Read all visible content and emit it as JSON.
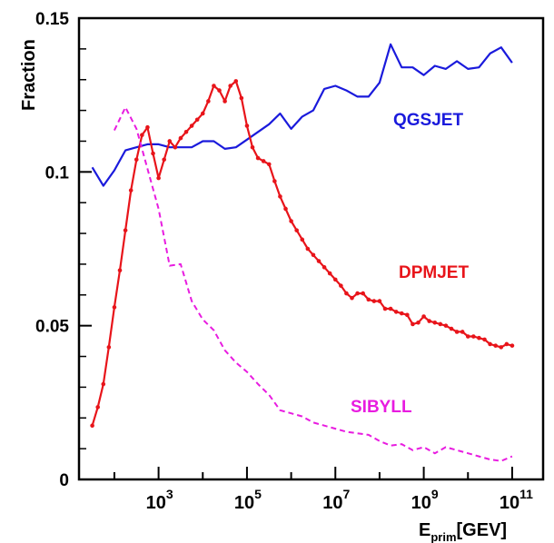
{
  "chart_data": {
    "type": "line",
    "ylabel": "Fraction",
    "xlabel_main": "E",
    "xlabel_sub": "prim",
    "xlabel_unit": "[GEV]",
    "xscale": "log10",
    "xlim_exp": [
      1.2,
      11.7
    ],
    "ylim": [
      0,
      0.15
    ],
    "yticks": [
      {
        "value": 0,
        "label": "0"
      },
      {
        "value": 0.05,
        "label": "0.05"
      },
      {
        "value": 0.1,
        "label": "0.1"
      },
      {
        "value": 0.15,
        "label": "0.15"
      }
    ],
    "xticks": [
      {
        "base": "10",
        "exp": "3",
        "value_exp": 3
      },
      {
        "base": "10",
        "exp": "5",
        "value_exp": 5
      },
      {
        "base": "10",
        "exp": "7",
        "value_exp": 7
      },
      {
        "base": "10",
        "exp": "9",
        "value_exp": 9
      },
      {
        "base": "10",
        "exp": "11",
        "value_exp": 11
      }
    ],
    "series": [
      {
        "name": "QGSJET",
        "color": "#1a1adc",
        "style": "solid",
        "markers": false,
        "x_exp": [
          1.5,
          1.75,
          2.0,
          2.25,
          2.5,
          2.75,
          3.0,
          3.25,
          3.5,
          3.75,
          4.0,
          4.25,
          4.5,
          4.75,
          5.0,
          5.25,
          5.5,
          5.75,
          6.0,
          6.25,
          6.5,
          6.75,
          7.0,
          7.25,
          7.5,
          7.75,
          8.0,
          8.25,
          8.5,
          8.75,
          9.0,
          9.25,
          9.5,
          9.75,
          10.0,
          10.25,
          10.5,
          10.75,
          11.0
        ],
        "y": [
          0.1015,
          0.0955,
          0.1005,
          0.107,
          0.108,
          0.109,
          0.109,
          0.108,
          0.108,
          0.108,
          0.11,
          0.11,
          0.1075,
          0.108,
          0.1105,
          0.113,
          0.1155,
          0.119,
          0.114,
          0.118,
          0.12,
          0.127,
          0.128,
          0.1265,
          0.1245,
          0.1245,
          0.129,
          0.1415,
          0.134,
          0.134,
          0.1315,
          0.1345,
          0.1335,
          0.136,
          0.1335,
          0.134,
          0.1385,
          0.1405,
          0.1355
        ]
      },
      {
        "name": "DPMJET",
        "color": "#e8141a",
        "style": "solid",
        "markers": true,
        "x_exp": [
          1.5,
          1.625,
          1.75,
          1.875,
          2.0,
          2.125,
          2.25,
          2.375,
          2.5,
          2.625,
          2.75,
          2.875,
          3.0,
          3.125,
          3.25,
          3.375,
          3.5,
          3.625,
          3.75,
          3.875,
          4.0,
          4.125,
          4.25,
          4.375,
          4.5,
          4.625,
          4.75,
          4.875,
          5.0,
          5.125,
          5.25,
          5.375,
          5.5,
          5.625,
          5.75,
          5.875,
          6.0,
          6.125,
          6.25,
          6.375,
          6.5,
          6.625,
          6.75,
          6.875,
          7.0,
          7.125,
          7.25,
          7.375,
          7.5,
          7.625,
          7.75,
          7.875,
          8.0,
          8.125,
          8.25,
          8.375,
          8.5,
          8.625,
          8.75,
          8.875,
          9.0,
          9.125,
          9.25,
          9.375,
          9.5,
          9.625,
          9.75,
          9.875,
          10.0,
          10.125,
          10.25,
          10.375,
          10.5,
          10.625,
          10.75,
          10.875,
          11.0
        ],
        "y": [
          0.0175,
          0.0235,
          0.031,
          0.043,
          0.056,
          0.068,
          0.081,
          0.094,
          0.104,
          0.112,
          0.1145,
          0.106,
          0.098,
          0.104,
          0.11,
          0.108,
          0.111,
          0.113,
          0.115,
          0.117,
          0.119,
          0.123,
          0.128,
          0.1265,
          0.123,
          0.128,
          0.1295,
          0.124,
          0.115,
          0.108,
          0.1045,
          0.1035,
          0.1025,
          0.097,
          0.092,
          0.088,
          0.084,
          0.081,
          0.078,
          0.075,
          0.073,
          0.071,
          0.069,
          0.067,
          0.065,
          0.063,
          0.0605,
          0.059,
          0.0605,
          0.0605,
          0.0585,
          0.058,
          0.058,
          0.0555,
          0.0555,
          0.0545,
          0.054,
          0.0535,
          0.0505,
          0.051,
          0.053,
          0.0515,
          0.051,
          0.0505,
          0.05,
          0.049,
          0.048,
          0.048,
          0.0465,
          0.0465,
          0.046,
          0.0455,
          0.044,
          0.0435,
          0.043,
          0.044,
          0.0435
        ]
      },
      {
        "name": "SIBYLL",
        "color": "#e81ce0",
        "style": "dashed",
        "markers": false,
        "x_exp": [
          2.0,
          2.25,
          2.5,
          2.75,
          3.0,
          3.25,
          3.5,
          3.75,
          4.0,
          4.25,
          4.5,
          4.75,
          5.0,
          5.25,
          5.5,
          5.75,
          6.0,
          6.25,
          6.5,
          6.75,
          7.0,
          7.25,
          7.5,
          7.75,
          8.0,
          8.25,
          8.5,
          8.75,
          9.0,
          9.25,
          9.5,
          9.75,
          10.0,
          10.25,
          10.5,
          10.75,
          11.0
        ],
        "y": [
          0.1135,
          0.121,
          0.114,
          0.101,
          0.088,
          0.0695,
          0.07,
          0.058,
          0.052,
          0.0485,
          0.042,
          0.038,
          0.035,
          0.031,
          0.0275,
          0.0225,
          0.0215,
          0.0205,
          0.0185,
          0.0175,
          0.0165,
          0.0155,
          0.015,
          0.0145,
          0.0125,
          0.011,
          0.0115,
          0.0095,
          0.0105,
          0.0085,
          0.0105,
          0.0095,
          0.0085,
          0.0075,
          0.0065,
          0.006,
          0.0075
        ]
      }
    ],
    "annotations": [
      {
        "text": "QGSJET",
        "series": "QGSJET"
      },
      {
        "text": "DPMJET",
        "series": "DPMJET"
      },
      {
        "text": "SIBYLL",
        "series": "SIBYLL"
      }
    ]
  }
}
